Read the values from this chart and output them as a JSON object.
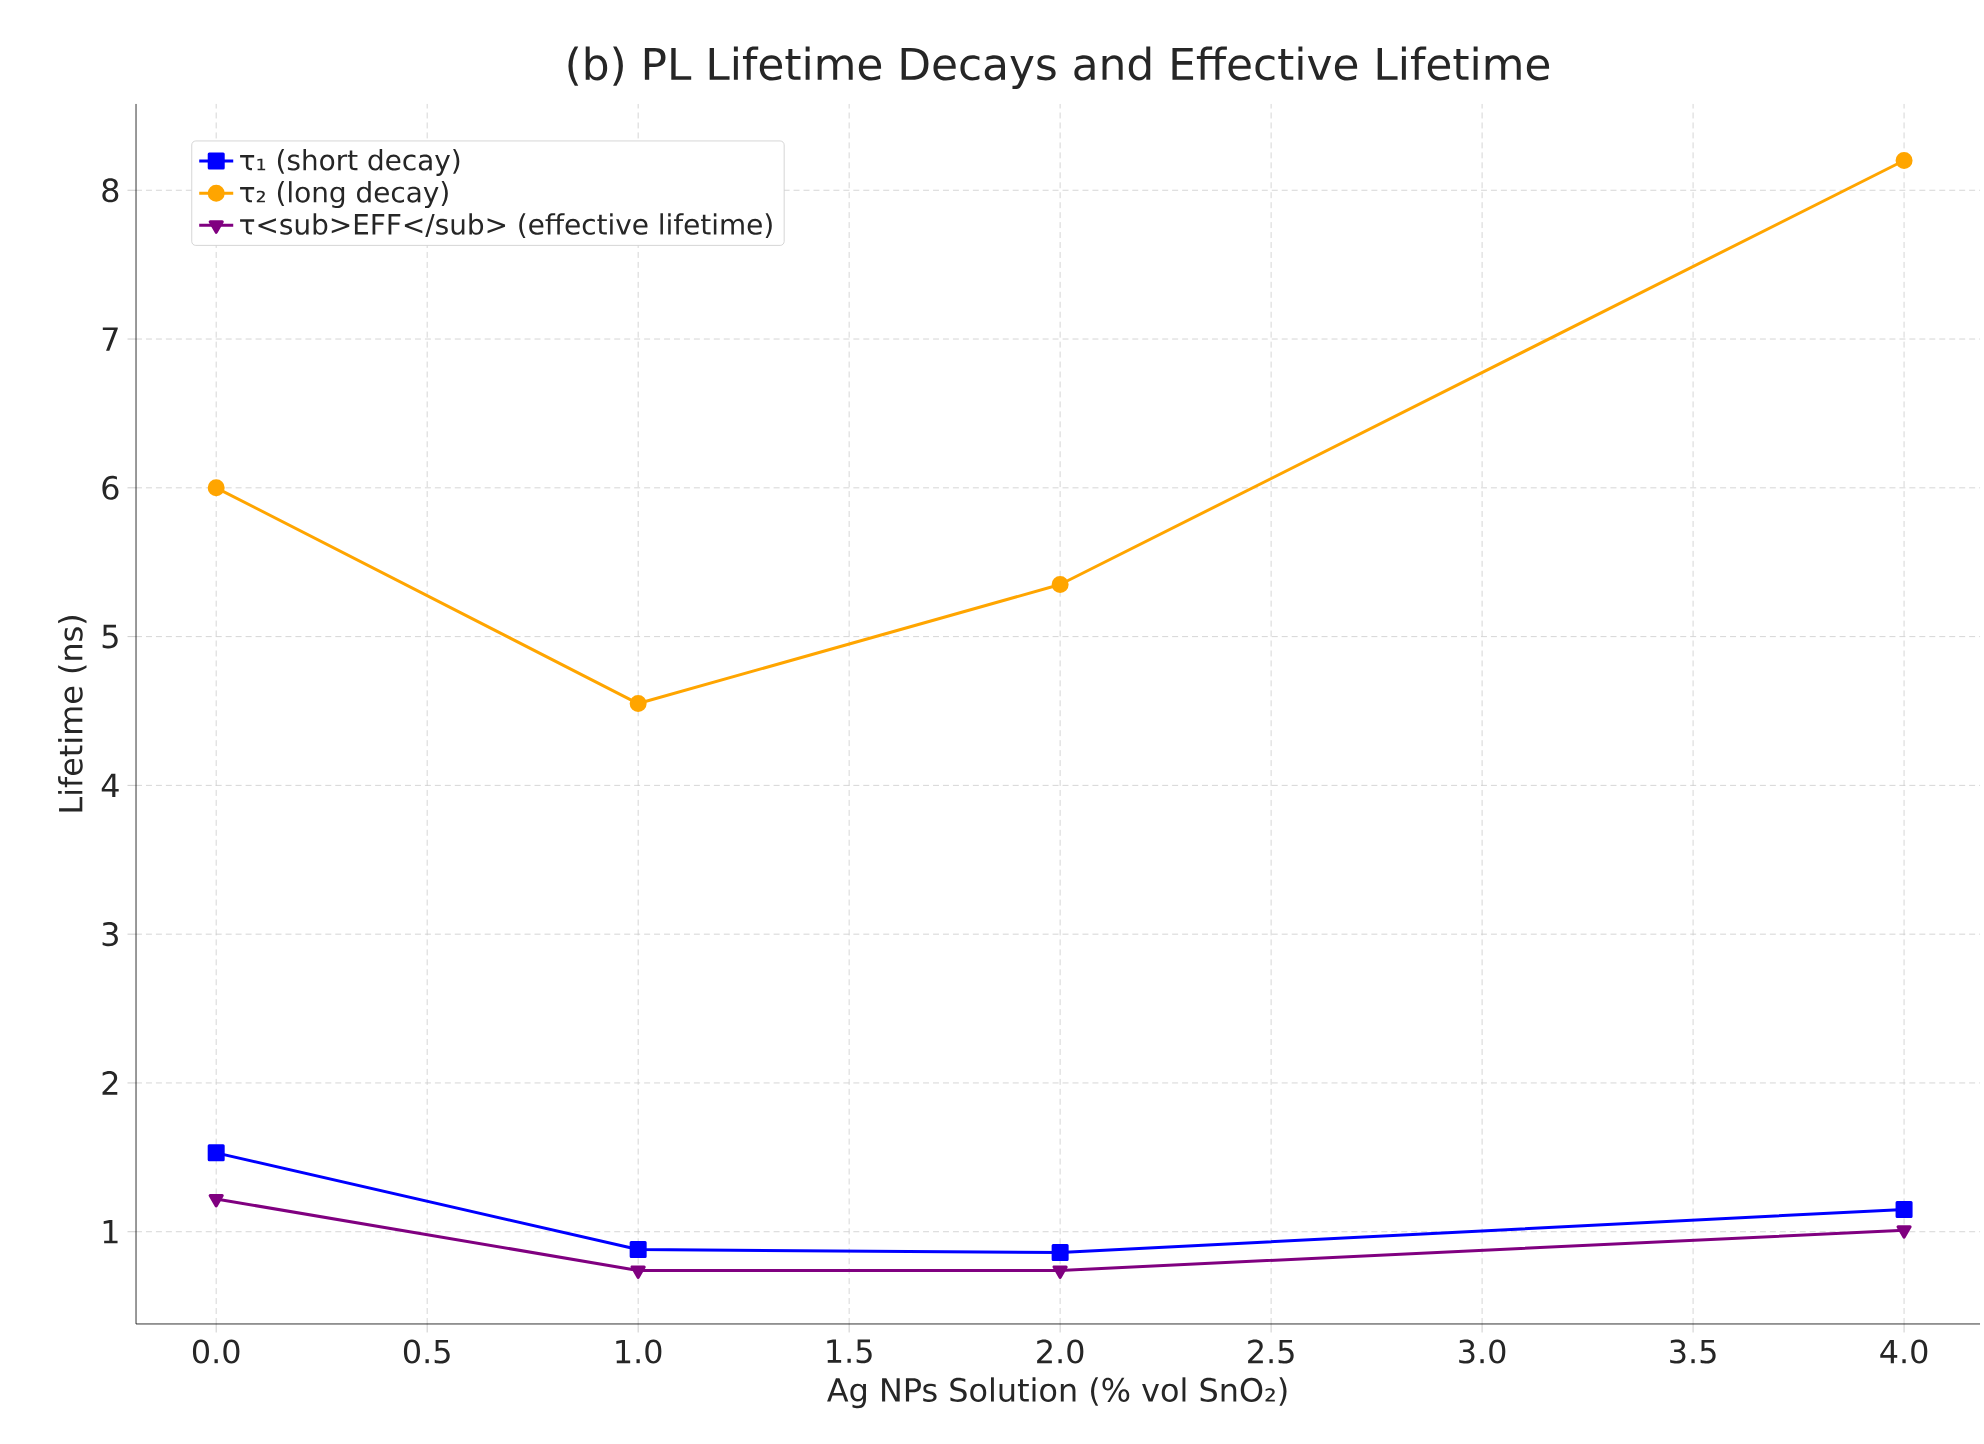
{
  "chart_data": {
    "type": "line",
    "title": "(b) PL Lifetime Decays and Effective Lifetime",
    "xlabel": "Ag NPs Solution (% vol SnO₂)",
    "ylabel": "Lifetime (ns)",
    "x": [
      0,
      1,
      2,
      4
    ],
    "series": [
      {
        "name": "τ₁ (short decay)",
        "color": "#0000ff",
        "marker": "square",
        "values": [
          1.53,
          0.88,
          0.86,
          1.15
        ]
      },
      {
        "name": "τ₂ (long decay)",
        "color": "#ffa500",
        "marker": "circle",
        "values": [
          6.0,
          4.55,
          5.35,
          8.2
        ]
      },
      {
        "name": "τ<sub>EFF</sub> (effective lifetime)",
        "color": "#800080",
        "marker": "triangle down",
        "values": [
          1.22,
          0.74,
          0.74,
          1.01
        ]
      }
    ],
    "xlim": [
      -0.19,
      4.18
    ],
    "ylim": [
      0.38,
      8.58
    ],
    "xticks": [
      {
        "value": 0,
        "label": "0.0"
      },
      {
        "value": 0.5,
        "label": "0.5"
      },
      {
        "value": 1,
        "label": "1.0"
      },
      {
        "value": 1.5,
        "label": "1.5"
      },
      {
        "value": 2,
        "label": "2.0"
      },
      {
        "value": 2.5,
        "label": "2.5"
      },
      {
        "value": 3,
        "label": "3.0"
      },
      {
        "value": 3.5,
        "label": "3.5"
      },
      {
        "value": 4,
        "label": "4.0"
      }
    ],
    "yticks": [
      1,
      2,
      3,
      4,
      5,
      6,
      7,
      8
    ],
    "grid": true,
    "legend": "top left",
    "line_style": "solid"
  }
}
